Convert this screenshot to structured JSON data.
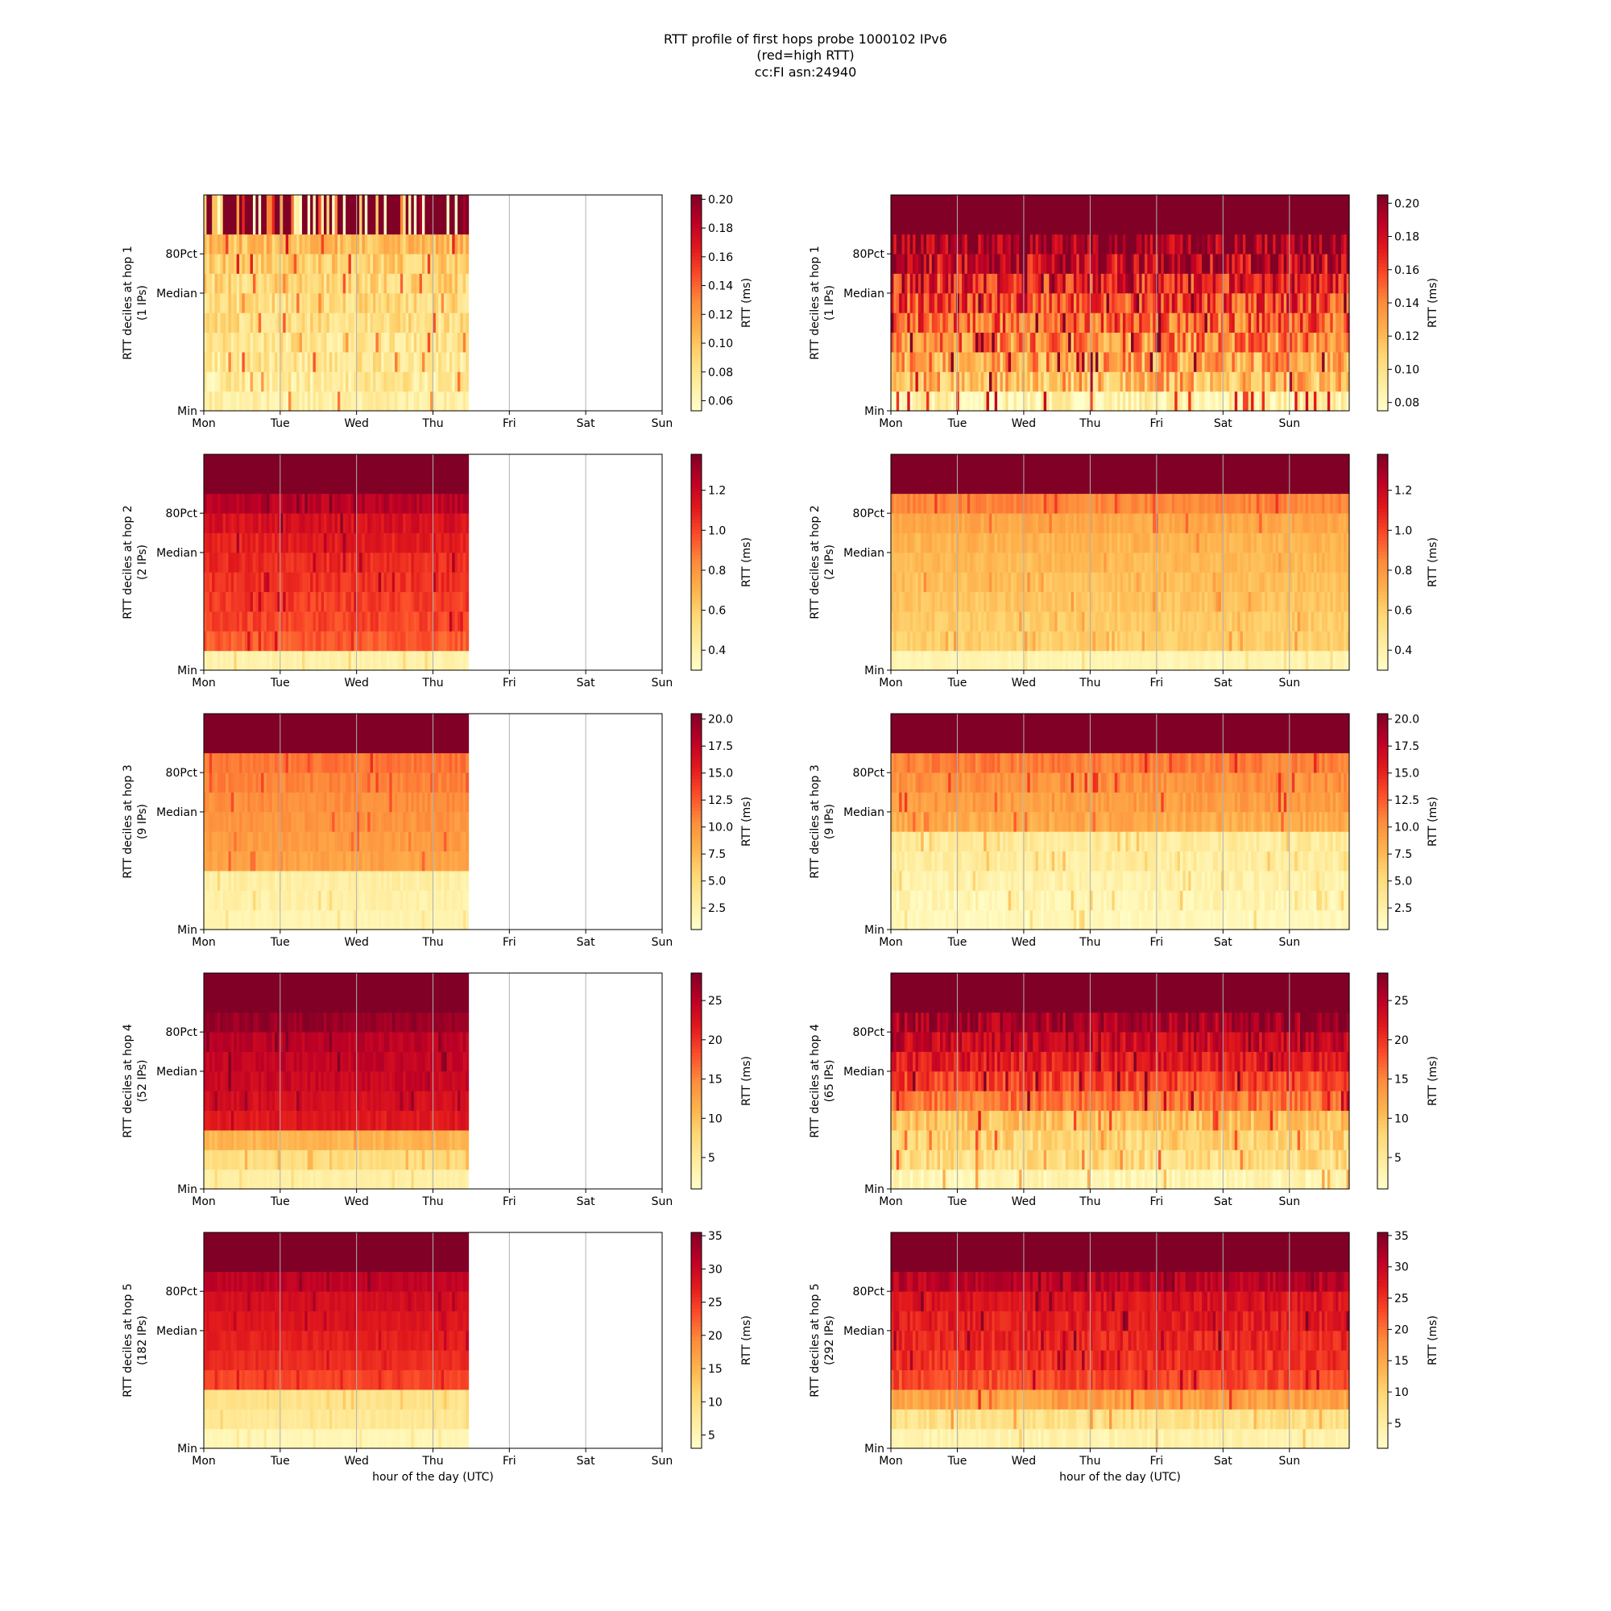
{
  "figure": {
    "title_lines": [
      "RTT profile of first hops probe 1000102 IPv6",
      "(red=high RTT)",
      "cc:FI asn:24940"
    ]
  },
  "chart_data": {
    "type": "heatmap",
    "x_ticks": [
      "Mon",
      "Tue",
      "Wed",
      "Thu",
      "Fri",
      "Sat",
      "Sun"
    ],
    "y_ticks": [
      "Min",
      "Median",
      "80Pct"
    ],
    "colorbar_label": "RTT (ms)",
    "xlabel": "hour of the day (UTC)",
    "colormap": [
      "#ffffcc",
      "#ffeda0",
      "#fed976",
      "#feb24c",
      "#fd8d3c",
      "#fc4e2a",
      "#e31a1c",
      "#bd0026",
      "#800026"
    ],
    "rows": [
      {
        "ylabel": "RTT deciles at hop 1",
        "ips_left": "(1 IPs)",
        "ips_right": "(1 IPs)",
        "left": {
          "cbar_ticks": [
            "0.06",
            "0.08",
            "0.10",
            "0.12",
            "0.14",
            "0.16",
            "0.18",
            "0.20"
          ],
          "cbar_range": [
            0.053,
            0.203
          ],
          "profile": [
            0.07,
            0.074,
            0.077,
            0.08,
            0.083,
            0.086,
            0.09,
            0.095,
            0.105,
            0.2
          ],
          "data_end_fraction": 0.58,
          "noise": 0.018,
          "top_noise": 0.25
        },
        "right": {
          "cbar_ticks": [
            "0.08",
            "0.10",
            "0.12",
            "0.14",
            "0.16",
            "0.18",
            "0.20"
          ],
          "cbar_range": [
            0.075,
            0.205
          ],
          "profile": [
            0.085,
            0.12,
            0.13,
            0.14,
            0.15,
            0.16,
            0.17,
            0.185,
            0.2,
            0.22
          ],
          "data_end_fraction": 1.0,
          "noise": 0.03,
          "top_noise": 0.0
        }
      },
      {
        "ylabel": "RTT deciles at hop 2",
        "ips_left": "(2 IPs)",
        "ips_right": "(2 IPs)",
        "left": {
          "cbar_ticks": [
            "0.4",
            "0.6",
            "0.8",
            "1.0",
            "1.2"
          ],
          "cbar_range": [
            0.3,
            1.38
          ],
          "profile": [
            0.4,
            0.95,
            1.0,
            1.02,
            1.05,
            1.07,
            1.1,
            1.15,
            1.25,
            1.5
          ],
          "data_end_fraction": 0.58,
          "noise": 0.06,
          "top_noise": 0.0
        },
        "right": {
          "cbar_ticks": [
            "0.4",
            "0.6",
            "0.8",
            "1.0",
            "1.2"
          ],
          "cbar_range": [
            0.3,
            1.38
          ],
          "profile": [
            0.38,
            0.6,
            0.62,
            0.64,
            0.66,
            0.68,
            0.7,
            0.74,
            0.85,
            1.5
          ],
          "data_end_fraction": 1.0,
          "noise": 0.05,
          "top_noise": 0.0
        }
      },
      {
        "ylabel": "RTT deciles at hop 3",
        "ips_left": "(9 IPs)",
        "ips_right": "(9 IPs)",
        "left": {
          "cbar_ticks": [
            "2.5",
            "5.0",
            "7.5",
            "10.0",
            "12.5",
            "15.0",
            "17.5",
            "20.0"
          ],
          "cbar_range": [
            0.5,
            20.5
          ],
          "profile": [
            2.0,
            2.5,
            2.8,
            9.0,
            9.5,
            10.0,
            10.3,
            10.8,
            11.5,
            22
          ],
          "data_end_fraction": 0.58,
          "noise": 0.8,
          "top_noise": 0.0
        },
        "right": {
          "cbar_ticks": [
            "2.5",
            "5.0",
            "7.5",
            "10.0",
            "12.5",
            "15.0",
            "17.5",
            "20.0"
          ],
          "cbar_range": [
            0.5,
            20.5
          ],
          "profile": [
            1.5,
            2.0,
            2.5,
            3.0,
            3.3,
            8.5,
            9.5,
            10.0,
            11.0,
            22
          ],
          "data_end_fraction": 1.0,
          "noise": 1.2,
          "top_noise": 0.0
        }
      },
      {
        "ylabel": "RTT deciles at hop 4",
        "ips_left": "(52 IPs)",
        "ips_right": "(65 IPs)",
        "left": {
          "cbar_ticks": [
            "5",
            "10",
            "15",
            "20",
            "25"
          ],
          "cbar_range": [
            1,
            28.5
          ],
          "profile": [
            4,
            7,
            11,
            22,
            23,
            24,
            24.5,
            25,
            27,
            30
          ],
          "data_end_fraction": 0.58,
          "noise": 1.2,
          "top_noise": 0.0
        },
        "right": {
          "cbar_ticks": [
            "5",
            "10",
            "15",
            "20",
            "25"
          ],
          "cbar_range": [
            1,
            28.5
          ],
          "profile": [
            3,
            7,
            8,
            10,
            16,
            19,
            22,
            24,
            26,
            30
          ],
          "data_end_fraction": 1.0,
          "noise": 3.0,
          "top_noise": 0.0
        }
      },
      {
        "ylabel": "RTT deciles at hop 5",
        "ips_left": "(182 IPs)",
        "ips_right": "(292 IPs)",
        "left": {
          "cbar_ticks": [
            "5",
            "10",
            "15",
            "20",
            "25",
            "30",
            "35"
          ],
          "cbar_range": [
            3,
            35.5
          ],
          "profile": [
            5,
            8,
            9,
            24,
            26,
            27,
            28,
            29,
            31,
            40
          ],
          "data_end_fraction": 0.58,
          "noise": 1.0,
          "top_noise": 0.0
        },
        "right": {
          "cbar_ticks": [
            "5",
            "10",
            "15",
            "20",
            "25",
            "30",
            "35"
          ],
          "cbar_range": [
            1,
            35.5
          ],
          "profile": [
            4,
            8,
            16,
            23,
            25,
            26,
            27,
            28,
            31,
            40
          ],
          "data_end_fraction": 1.0,
          "noise": 2.5,
          "top_noise": 0.0
        }
      }
    ]
  }
}
